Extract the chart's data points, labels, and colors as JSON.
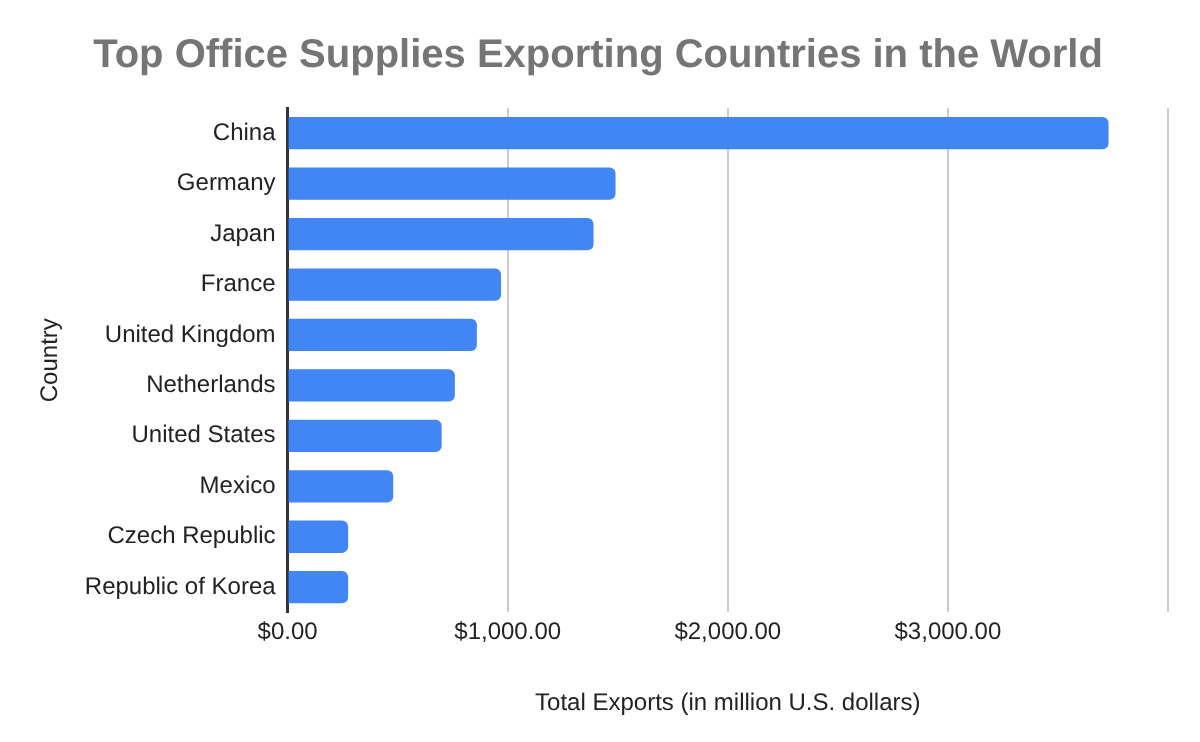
{
  "chart_data": {
    "type": "bar",
    "orientation": "horizontal",
    "title": "Top Office Supplies Exporting Countries in the World",
    "xlabel": "Total Exports (in million U.S. dollars)",
    "ylabel": "Country",
    "categories": [
      "China",
      "Germany",
      "Japan",
      "France",
      "United Kingdom",
      "Netherlands",
      "United States",
      "Mexico",
      "Czech Republic",
      "Republic of Korea"
    ],
    "values": [
      3730,
      1490,
      1390,
      970,
      860,
      760,
      700,
      480,
      275,
      275
    ],
    "color": "#4285f4",
    "xlim": [
      0,
      4000
    ],
    "xticks": [
      {
        "value": 0,
        "label": "$0.00"
      },
      {
        "value": 1000,
        "label": "$1,000.00"
      },
      {
        "value": 2000,
        "label": "$2,000.00"
      },
      {
        "value": 3000,
        "label": "$3,000.00"
      },
      {
        "value": 4000,
        "label": null
      }
    ],
    "grid": "x",
    "legend": false
  }
}
